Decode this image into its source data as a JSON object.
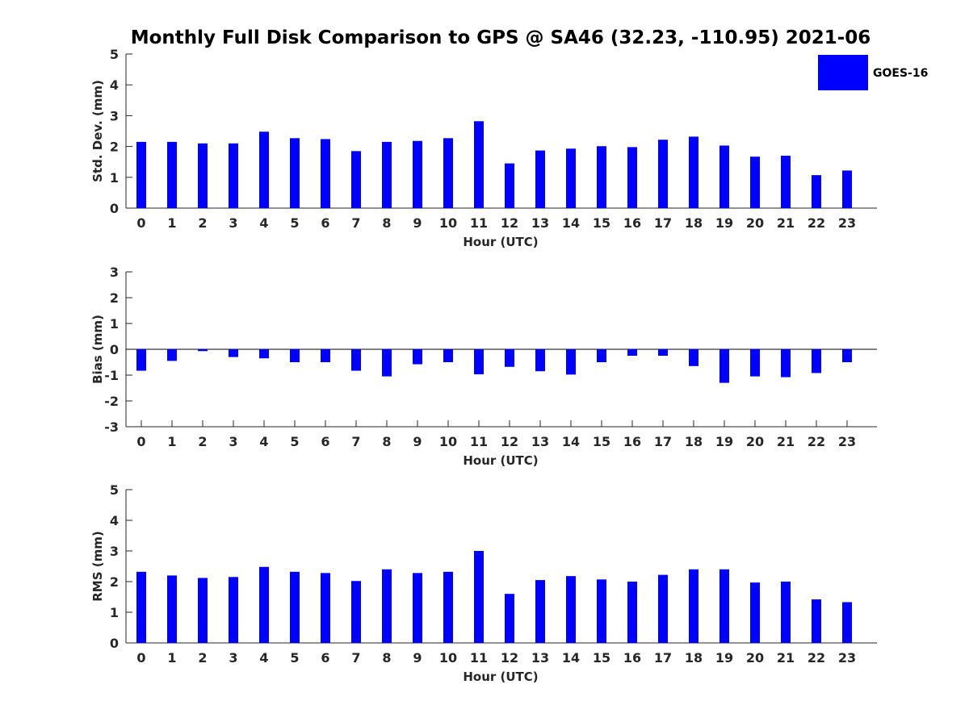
{
  "title": "Monthly Full Disk Comparison to GPS @ SA46 (32.23, -110.95) 2021-06",
  "legend": {
    "label": "GOES-16",
    "color": "#0000ff",
    "placement": "top-right"
  },
  "chart_data": [
    {
      "type": "bar",
      "xlabel": "Hour (UTC)",
      "ylabel": "Std. Dev. (mm)",
      "ylim": [
        0,
        5
      ],
      "yticks": [
        "0",
        "1",
        "2",
        "3",
        "4",
        "5"
      ],
      "categories": [
        "0",
        "1",
        "2",
        "3",
        "4",
        "5",
        "6",
        "7",
        "8",
        "9",
        "10",
        "11",
        "12",
        "13",
        "14",
        "15",
        "16",
        "17",
        "18",
        "19",
        "20",
        "21",
        "22",
        "23"
      ],
      "series": [
        {
          "name": "GOES-16",
          "color": "#0000ff",
          "values": [
            2.15,
            2.15,
            2.1,
            2.1,
            2.48,
            2.27,
            2.24,
            1.85,
            2.15,
            2.18,
            2.27,
            2.82,
            1.45,
            1.87,
            1.93,
            2.01,
            1.98,
            2.22,
            2.32,
            2.03,
            1.67,
            1.7,
            1.07,
            1.22
          ]
        }
      ]
    },
    {
      "type": "bar",
      "xlabel": "Hour (UTC)",
      "ylabel": "Bias (mm)",
      "ylim": [
        -3,
        3
      ],
      "yticks": [
        "-3",
        "-2",
        "-1",
        "0",
        "1",
        "2",
        "3"
      ],
      "categories": [
        "0",
        "1",
        "2",
        "3",
        "4",
        "5",
        "6",
        "7",
        "8",
        "9",
        "10",
        "11",
        "12",
        "13",
        "14",
        "15",
        "16",
        "17",
        "18",
        "19",
        "20",
        "21",
        "22",
        "23"
      ],
      "series": [
        {
          "name": "GOES-16",
          "color": "#0000ff",
          "values": [
            -0.83,
            -0.45,
            -0.07,
            -0.3,
            -0.35,
            -0.5,
            -0.5,
            -0.83,
            -1.05,
            -0.58,
            -0.5,
            -0.97,
            -0.68,
            -0.85,
            -0.98,
            -0.5,
            -0.25,
            -0.25,
            -0.65,
            -1.3,
            -1.05,
            -1.08,
            -0.92,
            -0.5
          ]
        }
      ]
    },
    {
      "type": "bar",
      "xlabel": "Hour (UTC)",
      "ylabel": "RMS (mm)",
      "ylim": [
        0,
        5
      ],
      "yticks": [
        "0",
        "1",
        "2",
        "3",
        "4",
        "5"
      ],
      "categories": [
        "0",
        "1",
        "2",
        "3",
        "4",
        "5",
        "6",
        "7",
        "8",
        "9",
        "10",
        "11",
        "12",
        "13",
        "14",
        "15",
        "16",
        "17",
        "18",
        "19",
        "20",
        "21",
        "22",
        "23"
      ],
      "series": [
        {
          "name": "GOES-16",
          "color": "#0000ff",
          "values": [
            2.32,
            2.2,
            2.12,
            2.15,
            2.48,
            2.32,
            2.28,
            2.02,
            2.4,
            2.28,
            2.32,
            3.0,
            1.6,
            2.05,
            2.18,
            2.07,
            2.0,
            2.22,
            2.4,
            2.4,
            1.97,
            2.0,
            1.42,
            1.33
          ]
        }
      ]
    }
  ]
}
